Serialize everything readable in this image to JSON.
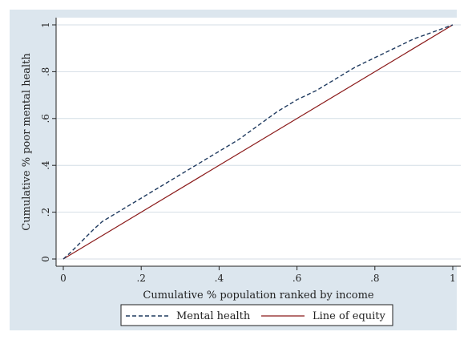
{
  "chart_data": {
    "type": "line",
    "title": "",
    "xlabel": "Cumulative % population ranked by income",
    "ylabel": "Cumulative % poor mental health",
    "xlim": [
      0,
      1
    ],
    "ylim": [
      0,
      1
    ],
    "x_ticks": [
      0,
      0.2,
      0.4,
      0.6,
      0.8,
      1
    ],
    "x_tick_labels": [
      "0",
      ".2",
      ".4",
      ".6",
      ".8",
      "1"
    ],
    "y_ticks": [
      0,
      0.2,
      0.4,
      0.6,
      0.8,
      1
    ],
    "y_tick_labels": [
      "0",
      ".2",
      ".4",
      ".6",
      ".8",
      "1"
    ],
    "grid": "horizontal",
    "legend_position": "bottom",
    "series": [
      {
        "name": "Mental health",
        "style": "dashed",
        "color": "#1f3a5f",
        "x": [
          0,
          0.02,
          0.05,
          0.08,
          0.1,
          0.15,
          0.2,
          0.25,
          0.3,
          0.35,
          0.4,
          0.45,
          0.5,
          0.55,
          0.6,
          0.65,
          0.7,
          0.75,
          0.8,
          0.85,
          0.9,
          0.95,
          1.0
        ],
        "y": [
          0,
          0.03,
          0.08,
          0.13,
          0.16,
          0.21,
          0.26,
          0.31,
          0.36,
          0.41,
          0.46,
          0.51,
          0.57,
          0.63,
          0.68,
          0.72,
          0.77,
          0.82,
          0.86,
          0.9,
          0.94,
          0.97,
          1.0
        ]
      },
      {
        "name": "Line of equity",
        "style": "solid",
        "color": "#8b1a1a",
        "x": [
          0,
          1
        ],
        "y": [
          0,
          1
        ]
      }
    ]
  }
}
